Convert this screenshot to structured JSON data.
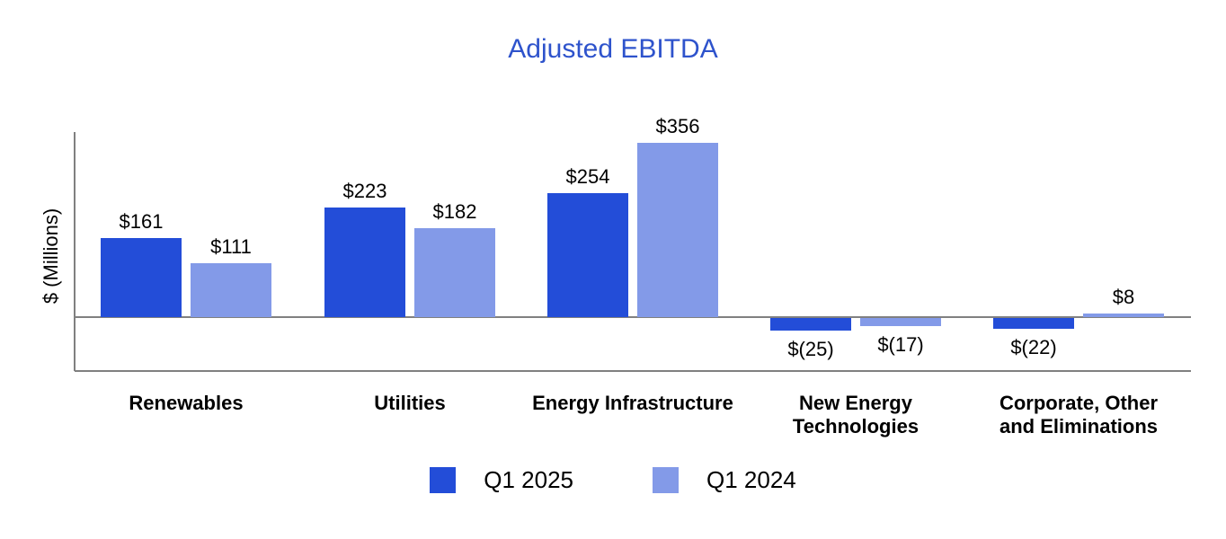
{
  "chart_data": {
    "type": "bar",
    "title": "Adjusted EBITDA",
    "ylabel": "$ (Millions)",
    "categories": [
      "Renewables",
      "Utilities",
      "Energy Infrastructure",
      "New Energy\nTechnologies",
      "Corporate, Other\nand Eliminations"
    ],
    "series": [
      {
        "name": "Q1 2025",
        "color": "#234DD8",
        "values": [
          161,
          223,
          254,
          -25,
          -22
        ],
        "value_labels": [
          "$161",
          "$223",
          "$254",
          "$(25)",
          "$(22)"
        ]
      },
      {
        "name": "Q1 2024",
        "color": "#839AE8",
        "values": [
          111,
          182,
          356,
          -17,
          8
        ],
        "value_labels": [
          "$111",
          "$182",
          "$356",
          "$(17)",
          "$8"
        ]
      }
    ],
    "ylim": [
      -110,
      380
    ],
    "grid": false,
    "legend_position": "bottom"
  },
  "colors": {
    "title": "#2E53CC",
    "axis": "#808080",
    "label_text": "#000000"
  }
}
